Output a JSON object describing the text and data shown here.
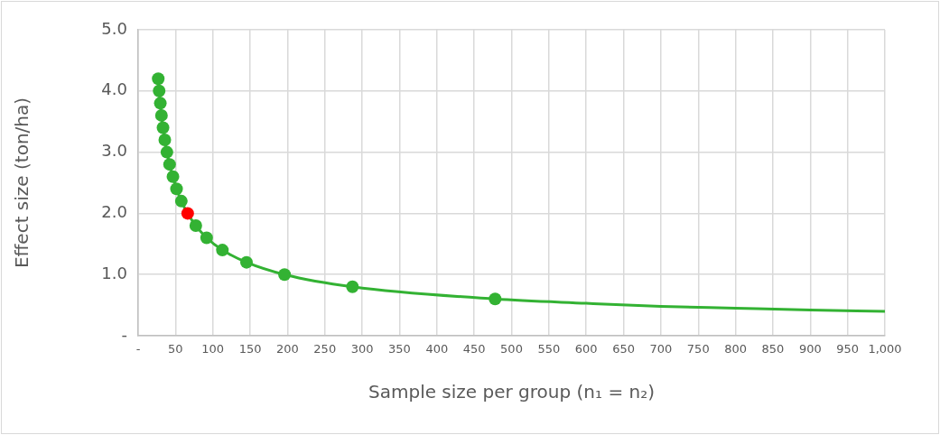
{
  "chart_data": {
    "type": "scatter",
    "xlabel": "Sample size per group (n₁ = n₂)",
    "ylabel": "Effect size (ton/ha)",
    "xlim": [
      0,
      1000
    ],
    "xticks": [
      {
        "value": 0,
        "label": "-"
      },
      50,
      100,
      150,
      200,
      250,
      300,
      350,
      400,
      450,
      500,
      550,
      600,
      650,
      700,
      750,
      800,
      850,
      900,
      950,
      {
        "value": 1000,
        "label": "1,000"
      }
    ],
    "ylim": [
      0,
      5
    ],
    "yticks": [
      {
        "value": 0,
        "label": "-"
      },
      {
        "value": 1,
        "label": "1.0"
      },
      {
        "value": 2,
        "label": "2.0"
      },
      {
        "value": 3,
        "label": "3.0"
      },
      {
        "value": 4,
        "label": "4.0"
      },
      {
        "value": 5,
        "label": "5.0"
      }
    ],
    "grid": true,
    "legend": false,
    "series": [
      {
        "type": "line",
        "color": "#33b233",
        "marker": "none",
        "line_style": "solid",
        "x": [
          26.9,
          28.1,
          29.7,
          31.2,
          33.3,
          35.7,
          38.5,
          42.1,
          46.6,
          51.4,
          57.8,
          66.3,
          77.2,
          91.7,
          112.8,
          145.1,
          196,
          287,
          478,
          600,
          700,
          800,
          900,
          1000
        ],
        "values": [
          4.2,
          4.0,
          3.8,
          3.6,
          3.4,
          3.2,
          3.0,
          2.8,
          2.6,
          2.4,
          2.2,
          2.0,
          1.8,
          1.6,
          1.4,
          1.2,
          1.0,
          0.8,
          0.6,
          0.53,
          0.48,
          0.45,
          0.42,
          0.4
        ]
      },
      {
        "color": "#33b233",
        "marker": "circle",
        "x": [
          26.9,
          28.1,
          29.7,
          31.2,
          33.3,
          35.7,
          38.5,
          42.1,
          46.6,
          51.4,
          57.8,
          77.2,
          91.7,
          112.8,
          145.1,
          196,
          287,
          478
        ],
        "values": [
          4.2,
          4.0,
          3.8,
          3.6,
          3.4,
          3.2,
          3.0,
          2.8,
          2.6,
          2.4,
          2.2,
          1.8,
          1.6,
          1.4,
          1.2,
          1.0,
          0.8,
          0.6
        ]
      },
      {
        "color": "#ff0000",
        "marker": "circle",
        "x": [
          66.3
        ],
        "values": [
          2.0
        ]
      }
    ]
  }
}
